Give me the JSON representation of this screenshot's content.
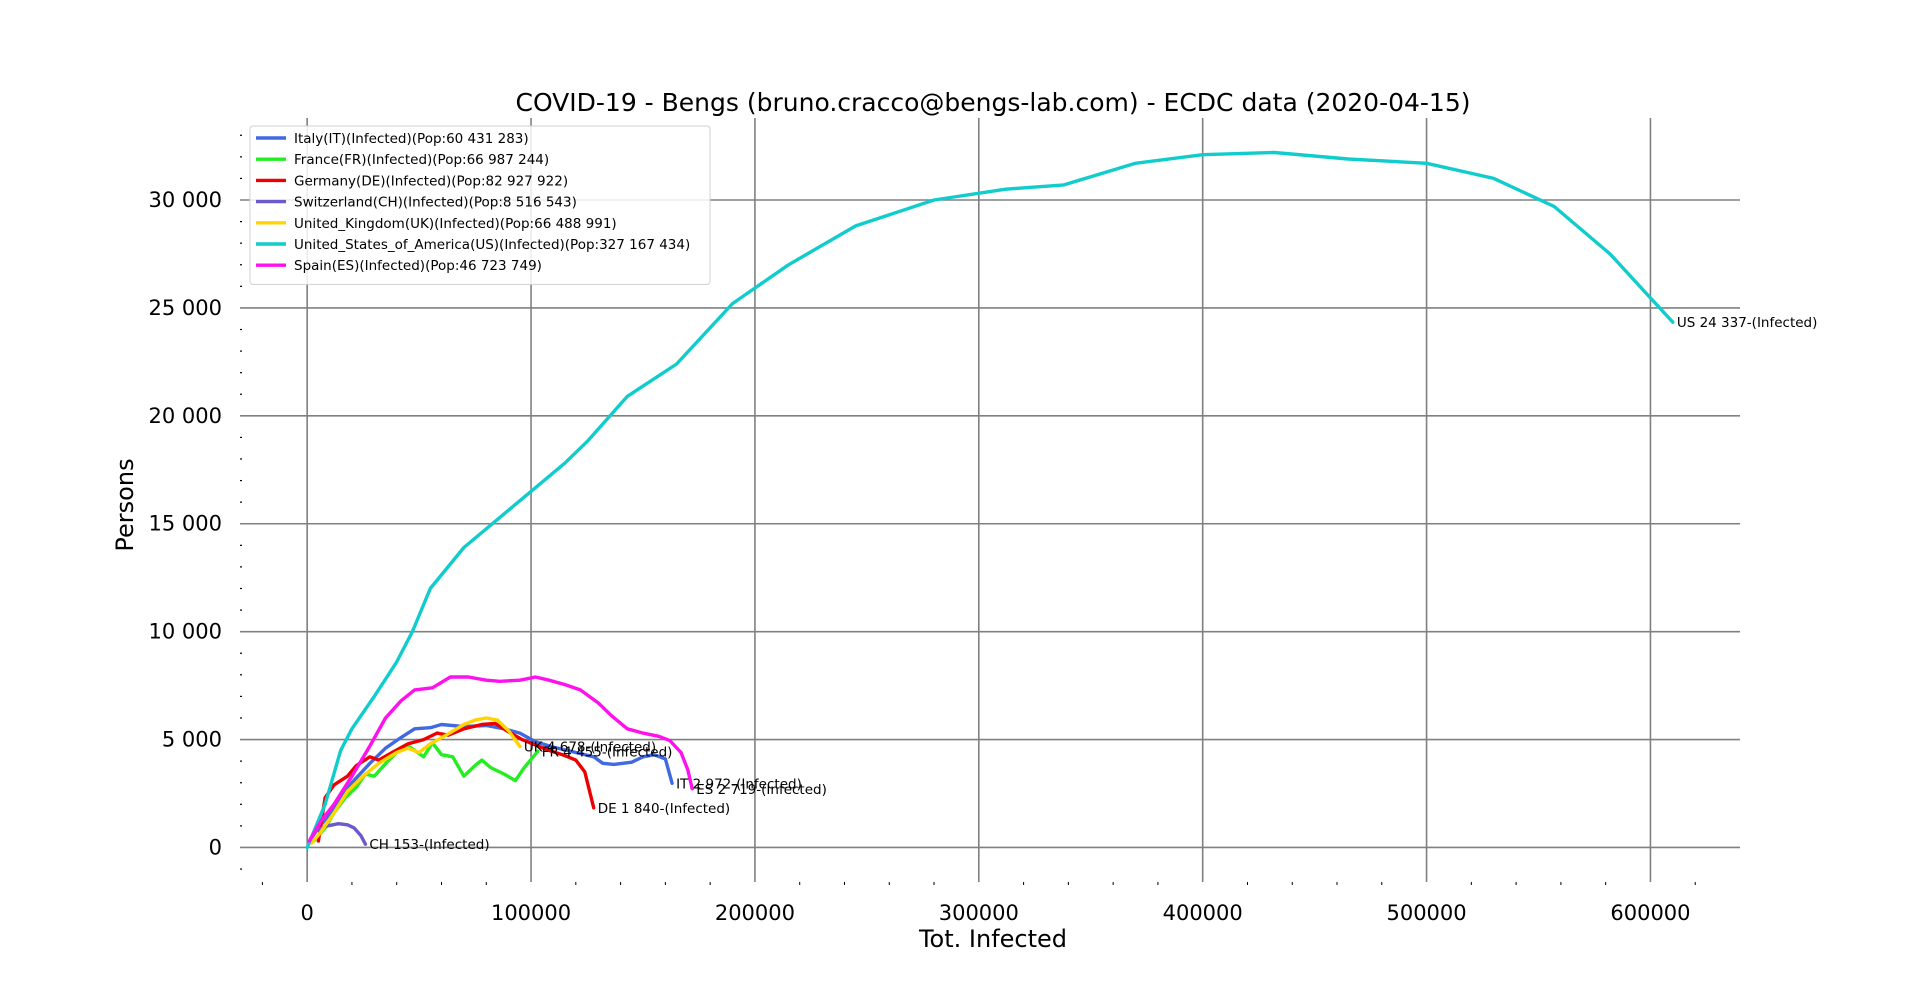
{
  "chart_data": {
    "type": "line",
    "title": "COVID-19 - Bengs (bruno.cracco@bengs-lab.com) - ECDC data  (2020-04-15)",
    "xlabel": "Tot. Infected",
    "ylabel": "Persons",
    "xlim": [
      -30000,
      640000
    ],
    "ylim": [
      -1600,
      33800
    ],
    "x_ticks": [
      0,
      100000,
      200000,
      300000,
      400000,
      500000,
      600000
    ],
    "x_tick_labels": [
      "0",
      "100000",
      "200000",
      "300000",
      "400000",
      "500000",
      "600000"
    ],
    "y_ticks": [
      0,
      5000,
      10000,
      15000,
      20000,
      25000,
      30000
    ],
    "y_tick_labels": [
      "0",
      "5 000",
      "10 000",
      "15 000",
      "20 000",
      "25 000",
      "30 000"
    ],
    "grid": true,
    "legend_position": "top-left",
    "series": [
      {
        "name": "Italy(IT)(Infected)(Pop:60 431 283)",
        "color": "#4169e1",
        "end_label": "IT 2 972-(Infected)",
        "points": [
          [
            1000,
            300
          ],
          [
            5000,
            900
          ],
          [
            12000,
            1800
          ],
          [
            20000,
            3000
          ],
          [
            28000,
            3900
          ],
          [
            35000,
            4600
          ],
          [
            42000,
            5100
          ],
          [
            48000,
            5500
          ],
          [
            55000,
            5550
          ],
          [
            60000,
            5700
          ],
          [
            70000,
            5600
          ],
          [
            80000,
            5650
          ],
          [
            88000,
            5500
          ],
          [
            95000,
            5300
          ],
          [
            102000,
            4900
          ],
          [
            110000,
            4650
          ],
          [
            120000,
            4400
          ],
          [
            128000,
            4200
          ],
          [
            132000,
            3900
          ],
          [
            137000,
            3850
          ],
          [
            145000,
            3950
          ],
          [
            150000,
            4200
          ],
          [
            155000,
            4300
          ],
          [
            160000,
            4100
          ],
          [
            163000,
            2972
          ]
        ]
      },
      {
        "name": "France(FR)(Infected)(Pop:66 987 244)",
        "color": "#22ee22",
        "end_label": "FR 4 455-(Infected)",
        "points": [
          [
            3000,
            300
          ],
          [
            8000,
            900
          ],
          [
            12000,
            1600
          ],
          [
            17000,
            2300
          ],
          [
            22000,
            2800
          ],
          [
            26000,
            3400
          ],
          [
            30000,
            3300
          ],
          [
            36000,
            4000
          ],
          [
            42000,
            4600
          ],
          [
            46000,
            4650
          ],
          [
            52000,
            4200
          ],
          [
            56000,
            4850
          ],
          [
            60000,
            4300
          ],
          [
            65000,
            4200
          ],
          [
            70000,
            3300
          ],
          [
            75000,
            3800
          ],
          [
            78000,
            4050
          ],
          [
            82000,
            3700
          ],
          [
            88000,
            3400
          ],
          [
            93000,
            3100
          ],
          [
            97000,
            3700
          ],
          [
            103000,
            4455
          ]
        ]
      },
      {
        "name": "Germany(DE)(Infected)(Pop:82 927 922)",
        "color": "#ee0000",
        "end_label": "DE 1 840-(Infected)",
        "points": [
          [
            5000,
            300
          ],
          [
            8000,
            2300
          ],
          [
            12000,
            2900
          ],
          [
            18000,
            3300
          ],
          [
            22000,
            3800
          ],
          [
            28000,
            4200
          ],
          [
            32000,
            4050
          ],
          [
            38000,
            4400
          ],
          [
            45000,
            4800
          ],
          [
            52000,
            5000
          ],
          [
            58000,
            5300
          ],
          [
            63000,
            5200
          ],
          [
            70000,
            5500
          ],
          [
            78000,
            5700
          ],
          [
            84000,
            5750
          ],
          [
            90000,
            5350
          ],
          [
            96000,
            5000
          ],
          [
            102000,
            4750
          ],
          [
            108000,
            4500
          ],
          [
            114000,
            4300
          ],
          [
            120000,
            4050
          ],
          [
            124000,
            3500
          ],
          [
            128000,
            1840
          ]
        ]
      },
      {
        "name": "Switzerland(CH)(Infected)(Pop:8 516 543)",
        "color": "#6a5acd",
        "end_label": "CH 153-(Infected)",
        "points": [
          [
            1000,
            300
          ],
          [
            4000,
            800
          ],
          [
            9000,
            1000
          ],
          [
            14000,
            1100
          ],
          [
            18000,
            1050
          ],
          [
            21000,
            900
          ],
          [
            24000,
            550
          ],
          [
            26000,
            153
          ]
        ]
      },
      {
        "name": "United_Kingdom(UK)(Infected)(Pop:66 488 991)",
        "color": "#ffd400",
        "end_label": "UK 4 678-(Infected)",
        "points": [
          [
            2000,
            200
          ],
          [
            6000,
            700
          ],
          [
            12000,
            1600
          ],
          [
            18000,
            2600
          ],
          [
            25000,
            3300
          ],
          [
            32000,
            3900
          ],
          [
            40000,
            4400
          ],
          [
            45000,
            4600
          ],
          [
            50000,
            4400
          ],
          [
            55000,
            4800
          ],
          [
            62000,
            5200
          ],
          [
            70000,
            5700
          ],
          [
            75000,
            5900
          ],
          [
            80000,
            6000
          ],
          [
            85000,
            5900
          ],
          [
            90000,
            5400
          ],
          [
            95000,
            4678
          ]
        ]
      },
      {
        "name": "United_States_of_America(US)(Infected)(Pop:327 167 434)",
        "color": "#11cccc",
        "end_label": "US 24 337-(Infected)",
        "points": [
          [
            0,
            0
          ],
          [
            8000,
            2000
          ],
          [
            15000,
            4500
          ],
          [
            20000,
            5500
          ],
          [
            30000,
            7000
          ],
          [
            40000,
            8600
          ],
          [
            47000,
            10000
          ],
          [
            55000,
            12000
          ],
          [
            70000,
            13900
          ],
          [
            85000,
            15200
          ],
          [
            100000,
            16500
          ],
          [
            115000,
            17800
          ],
          [
            125000,
            18800
          ],
          [
            143000,
            20900
          ],
          [
            165000,
            22400
          ],
          [
            190000,
            25200
          ],
          [
            215000,
            27000
          ],
          [
            245000,
            28800
          ],
          [
            280000,
            30000
          ],
          [
            312000,
            30500
          ],
          [
            338000,
            30700
          ],
          [
            370000,
            31700
          ],
          [
            400000,
            32100
          ],
          [
            432000,
            32200
          ],
          [
            465000,
            31900
          ],
          [
            500000,
            31700
          ],
          [
            530000,
            31000
          ],
          [
            557000,
            29700
          ],
          [
            582000,
            27500
          ],
          [
            610000,
            24337
          ]
        ]
      },
      {
        "name": "Spain(ES)(Infected)(Pop:46 723 749)",
        "color": "#ff11ee",
        "end_label": "ES 2 719-(Infected)",
        "points": [
          [
            1000,
            300
          ],
          [
            6000,
            1200
          ],
          [
            12000,
            2000
          ],
          [
            20000,
            3300
          ],
          [
            28000,
            4700
          ],
          [
            35000,
            6000
          ],
          [
            42000,
            6800
          ],
          [
            48000,
            7300
          ],
          [
            56000,
            7400
          ],
          [
            64000,
            7900
          ],
          [
            72000,
            7900
          ],
          [
            80000,
            7750
          ],
          [
            86000,
            7700
          ],
          [
            95000,
            7750
          ],
          [
            102000,
            7900
          ],
          [
            108000,
            7750
          ],
          [
            115000,
            7550
          ],
          [
            122000,
            7300
          ],
          [
            130000,
            6700
          ],
          [
            136000,
            6100
          ],
          [
            143000,
            5500
          ],
          [
            150000,
            5300
          ],
          [
            157000,
            5150
          ],
          [
            162000,
            4950
          ],
          [
            167000,
            4400
          ],
          [
            170000,
            3600
          ],
          [
            172000,
            2719
          ]
        ]
      }
    ]
  }
}
